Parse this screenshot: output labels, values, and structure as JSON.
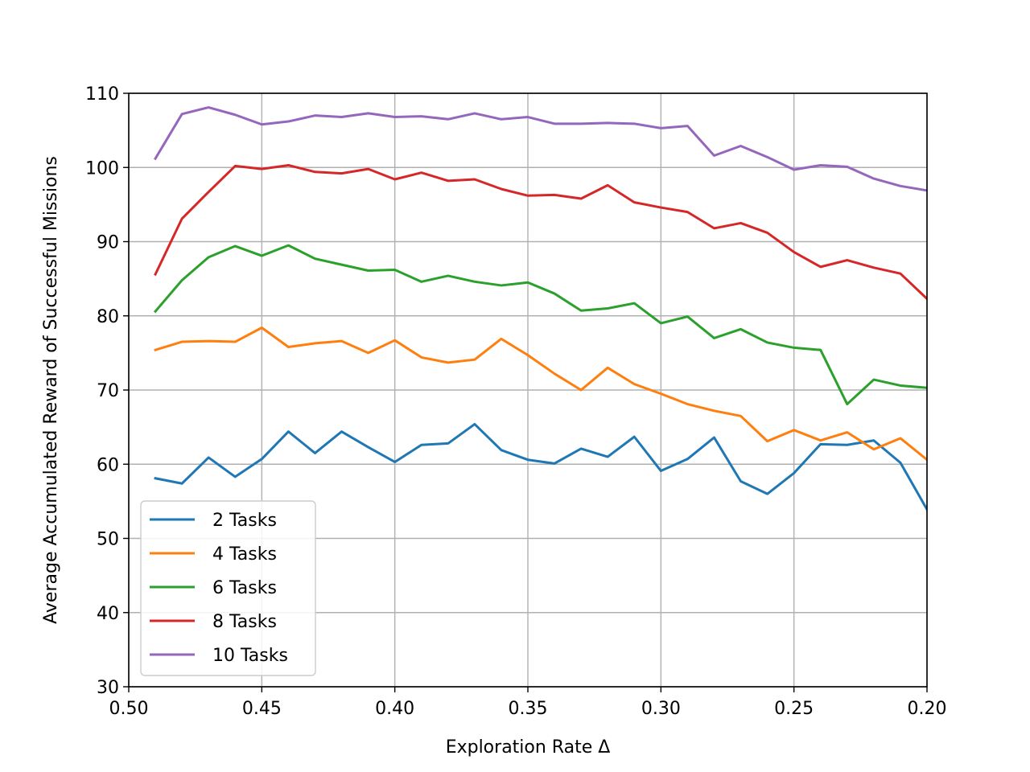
{
  "chart_data": {
    "type": "line",
    "xlabel": "Exploration Rate Δ",
    "ylabel": "Average Accumulated Reward of Successful Missions",
    "xlim": [
      0.5,
      0.2
    ],
    "ylim": [
      30,
      110
    ],
    "x_ticks": [
      "0.50",
      "0.45",
      "0.40",
      "0.35",
      "0.30",
      "0.25",
      "0.20"
    ],
    "y_ticks": [
      "30",
      "40",
      "50",
      "60",
      "70",
      "80",
      "90",
      "100",
      "110"
    ],
    "grid": true,
    "legend_position": "lower-left",
    "x": [
      0.49,
      0.48,
      0.47,
      0.46,
      0.45,
      0.44,
      0.43,
      0.42,
      0.41,
      0.4,
      0.39,
      0.38,
      0.37,
      0.36,
      0.35,
      0.34,
      0.33,
      0.32,
      0.31,
      0.3,
      0.29,
      0.28,
      0.27,
      0.26,
      0.25,
      0.24,
      0.23,
      0.22,
      0.21,
      0.2
    ],
    "series": [
      {
        "name": "2 Tasks",
        "color": "#1f77b4",
        "values": [
          58.1,
          57.4,
          60.9,
          58.3,
          60.7,
          64.4,
          61.5,
          64.4,
          62.3,
          60.3,
          62.6,
          62.8,
          65.4,
          61.9,
          60.6,
          60.1,
          62.1,
          61.0,
          63.7,
          59.1,
          60.7,
          63.6,
          57.7,
          56.0,
          58.8,
          62.7,
          62.6,
          63.2,
          60.2,
          53.9
        ]
      },
      {
        "name": "4 Tasks",
        "color": "#ff7f0e",
        "values": [
          75.4,
          76.5,
          76.6,
          76.5,
          78.4,
          75.8,
          76.3,
          76.6,
          75.0,
          76.7,
          74.4,
          73.7,
          74.1,
          76.9,
          74.7,
          72.2,
          70.0,
          73.0,
          70.8,
          69.5,
          68.1,
          67.2,
          66.5,
          63.1,
          64.6,
          63.2,
          64.3,
          62.0,
          63.5,
          60.6
        ]
      },
      {
        "name": "6 Tasks",
        "color": "#2ca02c",
        "values": [
          80.6,
          84.8,
          87.9,
          89.4,
          88.1,
          89.5,
          87.7,
          86.9,
          86.1,
          86.2,
          84.6,
          85.4,
          84.6,
          84.1,
          84.5,
          83.0,
          80.7,
          81.0,
          81.7,
          79.0,
          79.9,
          77.0,
          78.2,
          76.4,
          75.7,
          75.4,
          68.1,
          71.4,
          70.6,
          70.3
        ]
      },
      {
        "name": "8 Tasks",
        "color": "#d62728",
        "values": [
          85.6,
          93.1,
          96.7,
          100.2,
          99.8,
          100.3,
          99.4,
          99.2,
          99.8,
          98.4,
          99.3,
          98.2,
          98.4,
          97.1,
          96.2,
          96.3,
          95.8,
          97.6,
          95.3,
          94.6,
          94.0,
          91.8,
          92.5,
          91.2,
          88.6,
          86.6,
          87.5,
          86.5,
          85.7,
          82.3
        ]
      },
      {
        "name": "10 Tasks",
        "color": "#9467bd",
        "values": [
          101.2,
          107.2,
          108.1,
          107.1,
          105.8,
          106.2,
          107.0,
          106.8,
          107.3,
          106.8,
          106.9,
          106.5,
          107.3,
          106.5,
          106.8,
          105.9,
          105.9,
          106.0,
          105.9,
          105.3,
          105.6,
          101.6,
          102.9,
          101.4,
          99.7,
          100.3,
          100.1,
          98.5,
          97.5,
          96.9
        ]
      }
    ]
  }
}
